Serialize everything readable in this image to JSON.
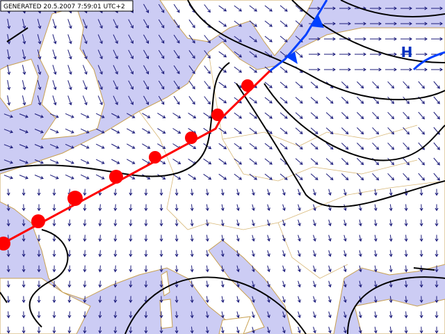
{
  "header": {
    "generated": "GENERATED 20.5.2007 7:59:01 UTC+2"
  },
  "map": {
    "pressure_label": "H"
  }
}
